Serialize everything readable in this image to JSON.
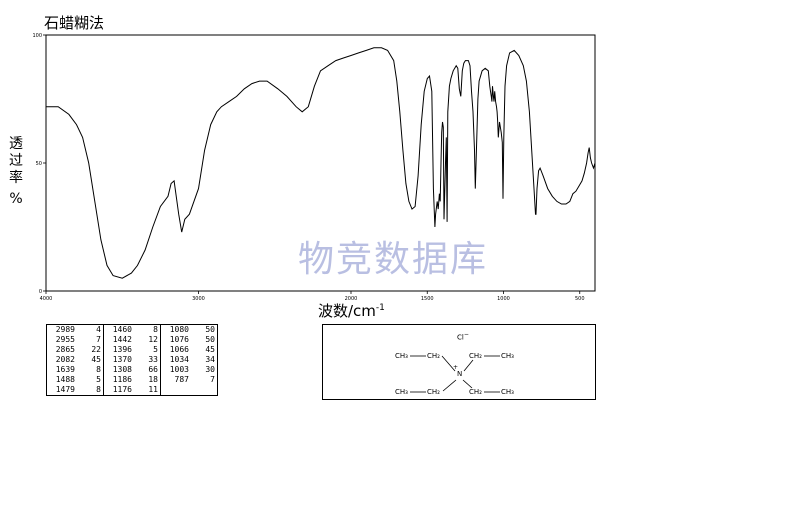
{
  "title": "石蜡糊法",
  "watermark": "物竞数据库",
  "chart_data": {
    "type": "line",
    "title": "石蜡糊法",
    "xlabel": "波数/cm",
    "xlabel_sup": "-1",
    "ylabel": "透过率",
    "ylabel_unit": "%",
    "xlim": [
      4000,
      400
    ],
    "ylim": [
      0,
      100
    ],
    "x_ticks": [
      4000,
      3000,
      2000,
      1500,
      1000,
      500
    ],
    "x_tick_labels": [
      "4000",
      "3000",
      "2000",
      "1500",
      "1000",
      "500"
    ],
    "y_ticks": [
      0,
      50,
      100
    ],
    "y_tick_labels": [
      "0",
      "50",
      "100"
    ],
    "series": [
      {
        "points": [
          [
            4000,
            72
          ],
          [
            3920,
            72
          ],
          [
            3850,
            69
          ],
          [
            3800,
            65
          ],
          [
            3760,
            60
          ],
          [
            3720,
            50
          ],
          [
            3680,
            35
          ],
          [
            3640,
            20
          ],
          [
            3600,
            10
          ],
          [
            3560,
            6
          ],
          [
            3500,
            5
          ],
          [
            3440,
            7
          ],
          [
            3400,
            10
          ],
          [
            3350,
            16
          ],
          [
            3300,
            25
          ],
          [
            3250,
            33
          ],
          [
            3200,
            37
          ],
          [
            3180,
            42
          ],
          [
            3160,
            43
          ],
          [
            3130,
            30
          ],
          [
            3110,
            23
          ],
          [
            3090,
            28
          ],
          [
            3060,
            30
          ],
          [
            3000,
            40
          ],
          [
            2960,
            55
          ],
          [
            2920,
            65
          ],
          [
            2880,
            70
          ],
          [
            2850,
            72
          ],
          [
            2800,
            74
          ],
          [
            2750,
            76
          ],
          [
            2700,
            79
          ],
          [
            2650,
            81
          ],
          [
            2600,
            82
          ],
          [
            2550,
            82
          ],
          [
            2480,
            79
          ],
          [
            2420,
            76
          ],
          [
            2360,
            72
          ],
          [
            2320,
            70
          ],
          [
            2280,
            72
          ],
          [
            2240,
            80
          ],
          [
            2200,
            86
          ],
          [
            2150,
            88
          ],
          [
            2100,
            90
          ],
          [
            2050,
            91
          ],
          [
            2000,
            92
          ],
          [
            1950,
            93
          ],
          [
            1900,
            94
          ],
          [
            1850,
            95
          ],
          [
            1800,
            95
          ],
          [
            1760,
            94
          ],
          [
            1720,
            90
          ],
          [
            1700,
            82
          ],
          [
            1680,
            70
          ],
          [
            1660,
            55
          ],
          [
            1640,
            42
          ],
          [
            1620,
            35
          ],
          [
            1600,
            32
          ],
          [
            1580,
            33
          ],
          [
            1560,
            45
          ],
          [
            1540,
            65
          ],
          [
            1520,
            78
          ],
          [
            1500,
            83
          ],
          [
            1485,
            84
          ],
          [
            1470,
            78
          ],
          [
            1460,
            40
          ],
          [
            1450,
            25
          ],
          [
            1445,
            30
          ],
          [
            1435,
            35
          ],
          [
            1428,
            32
          ],
          [
            1420,
            38
          ],
          [
            1415,
            35
          ],
          [
            1410,
            50
          ],
          [
            1405,
            62
          ],
          [
            1400,
            66
          ],
          [
            1395,
            64
          ],
          [
            1390,
            28
          ],
          [
            1380,
            50
          ],
          [
            1375,
            60
          ],
          [
            1370,
            27
          ],
          [
            1365,
            70
          ],
          [
            1355,
            80
          ],
          [
            1345,
            83
          ],
          [
            1330,
            86
          ],
          [
            1310,
            88
          ],
          [
            1300,
            87
          ],
          [
            1290,
            79
          ],
          [
            1280,
            76
          ],
          [
            1270,
            86
          ],
          [
            1260,
            89
          ],
          [
            1250,
            90
          ],
          [
            1240,
            90
          ],
          [
            1230,
            90
          ],
          [
            1220,
            88
          ],
          [
            1210,
            78
          ],
          [
            1200,
            70
          ],
          [
            1190,
            55
          ],
          [
            1185,
            40
          ],
          [
            1175,
            60
          ],
          [
            1168,
            75
          ],
          [
            1160,
            82
          ],
          [
            1140,
            86
          ],
          [
            1120,
            87
          ],
          [
            1100,
            86
          ],
          [
            1090,
            80
          ],
          [
            1085,
            78
          ],
          [
            1080,
            76
          ],
          [
            1076,
            74
          ],
          [
            1072,
            80
          ],
          [
            1066,
            76
          ],
          [
            1062,
            74
          ],
          [
            1058,
            78
          ],
          [
            1052,
            74
          ],
          [
            1046,
            72
          ],
          [
            1042,
            70
          ],
          [
            1038,
            66
          ],
          [
            1034,
            60
          ],
          [
            1030,
            63
          ],
          [
            1026,
            66
          ],
          [
            1015,
            62
          ],
          [
            1008,
            58
          ],
          [
            1003,
            36
          ],
          [
            998,
            60
          ],
          [
            990,
            80
          ],
          [
            980,
            88
          ],
          [
            960,
            93
          ],
          [
            930,
            94
          ],
          [
            900,
            92
          ],
          [
            870,
            88
          ],
          [
            850,
            82
          ],
          [
            830,
            70
          ],
          [
            815,
            55
          ],
          [
            800,
            40
          ],
          [
            790,
            30
          ],
          [
            787,
            30
          ],
          [
            780,
            40
          ],
          [
            770,
            47
          ],
          [
            760,
            48
          ],
          [
            740,
            45
          ],
          [
            710,
            40
          ],
          [
            680,
            37
          ],
          [
            650,
            35
          ],
          [
            620,
            34
          ],
          [
            590,
            34
          ],
          [
            565,
            35
          ],
          [
            545,
            38
          ],
          [
            525,
            39
          ],
          [
            505,
            41
          ],
          [
            485,
            43
          ],
          [
            470,
            46
          ],
          [
            455,
            50
          ],
          [
            445,
            54
          ],
          [
            438,
            56
          ],
          [
            430,
            52
          ],
          [
            422,
            50
          ],
          [
            410,
            48
          ],
          [
            400,
            50
          ]
        ]
      }
    ]
  },
  "peak_table": {
    "columns": [
      [
        [
          "2989",
          "4"
        ],
        [
          "2955",
          "7"
        ],
        [
          "2865",
          "22"
        ],
        [
          "2082",
          "45"
        ],
        [
          "1639",
          "8"
        ],
        [
          "1488",
          "5"
        ],
        [
          "1479",
          "8"
        ]
      ],
      [
        [
          "1460",
          "8"
        ],
        [
          "1442",
          "12"
        ],
        [
          "1396",
          "5"
        ],
        [
          "1370",
          "33"
        ],
        [
          "1308",
          "66"
        ],
        [
          "1186",
          "18"
        ],
        [
          "1176",
          "11"
        ]
      ],
      [
        [
          "1080",
          "50"
        ],
        [
          "1076",
          "50"
        ],
        [
          "1066",
          "45"
        ],
        [
          "1034",
          "34"
        ],
        [
          "1003",
          "30"
        ],
        [
          "787",
          "7"
        ],
        [
          "",
          ""
        ]
      ]
    ]
  },
  "structure": {
    "anion": "Cl",
    "anion_charge": "−",
    "n": "N",
    "n_charge": "+",
    "ch3_top_left": "CH₃",
    "ch2_top_left": "CH₂",
    "ch2_top_right": "CH₂",
    "ch3_top_right": "CH₃",
    "ch3_bottom_left": "CH₃",
    "ch2_bottom_left": "CH₂",
    "ch2_bottom_right": "CH₂",
    "ch3_bottom_right": "CH₃"
  }
}
